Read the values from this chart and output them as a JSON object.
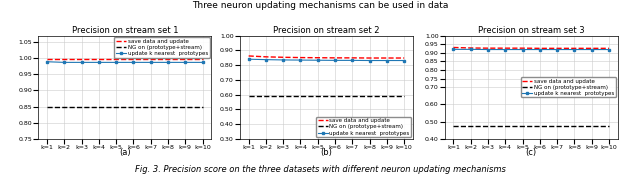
{
  "suptitle": "Three neuron updating mechanisms can be used in data",
  "caption": "Fig. 3. Precision score on the three datasets with different neuron updating mechanisms",
  "x_labels": [
    "k=1",
    "k=2",
    "k=3",
    "k=4",
    "k=5",
    "k=6",
    "k=7",
    "k=8",
    "k=9",
    "k=10"
  ],
  "x_values": [
    1,
    2,
    3,
    4,
    5,
    6,
    7,
    8,
    9,
    10
  ],
  "subplots": [
    {
      "title": "Precision on stream set 1",
      "label": "(a)",
      "ylim": [
        0.75,
        1.07
      ],
      "yticks": [
        0.75,
        0.8,
        0.85,
        0.9,
        0.95,
        1.0,
        1.05
      ],
      "red_line": [
        0.999,
        0.999,
        0.999,
        0.999,
        0.999,
        0.999,
        0.999,
        0.999,
        0.999,
        0.999
      ],
      "black_line": [
        0.848,
        0.848,
        0.848,
        0.848,
        0.848,
        0.848,
        0.848,
        0.848,
        0.848,
        0.848
      ],
      "blue_line": [
        0.989,
        0.987,
        0.987,
        0.987,
        0.987,
        0.987,
        0.987,
        0.987,
        0.987,
        0.987
      ],
      "legend_loc": "upper right"
    },
    {
      "title": "Precision on stream set 2",
      "label": "(b)",
      "ylim": [
        0.3,
        1.0
      ],
      "yticks": [
        0.3,
        0.4,
        0.5,
        0.6,
        0.7,
        0.8,
        0.9,
        1.0
      ],
      "red_line": [
        0.862,
        0.856,
        0.853,
        0.851,
        0.85,
        0.849,
        0.849,
        0.848,
        0.848,
        0.848
      ],
      "black_line": [
        0.588,
        0.588,
        0.588,
        0.588,
        0.588,
        0.588,
        0.588,
        0.588,
        0.588,
        0.588
      ],
      "blue_line": [
        0.84,
        0.837,
        0.835,
        0.834,
        0.833,
        0.832,
        0.832,
        0.831,
        0.831,
        0.831
      ],
      "legend_loc": "lower right"
    },
    {
      "title": "Precision on stream set 3",
      "label": "(c)",
      "ylim": [
        0.4,
        1.0
      ],
      "yticks": [
        0.4,
        0.5,
        0.6,
        0.7,
        0.75,
        0.8,
        0.85,
        0.9,
        0.95,
        1.0
      ],
      "red_line": [
        0.931,
        0.928,
        0.927,
        0.927,
        0.927,
        0.926,
        0.926,
        0.926,
        0.926,
        0.926
      ],
      "black_line": [
        0.474,
        0.474,
        0.474,
        0.474,
        0.474,
        0.474,
        0.474,
        0.474,
        0.474,
        0.474
      ],
      "blue_line": [
        0.92,
        0.92,
        0.919,
        0.919,
        0.919,
        0.919,
        0.919,
        0.919,
        0.919,
        0.919
      ],
      "legend_loc": "center right"
    }
  ],
  "legend_labels": [
    "save data and update",
    "NG on (prototype+stream)",
    "update k nearest  prototypes"
  ],
  "red_color": "#FF0000",
  "black_color": "#000000",
  "blue_color": "#1F77B4",
  "background_color": "#FFFFFF",
  "grid_color": "#CCCCCC",
  "title_fontsize": 6,
  "tick_fontsize": 4.5,
  "legend_fontsize": 4.0,
  "sublabel_fontsize": 6,
  "caption_fontsize": 6.0
}
